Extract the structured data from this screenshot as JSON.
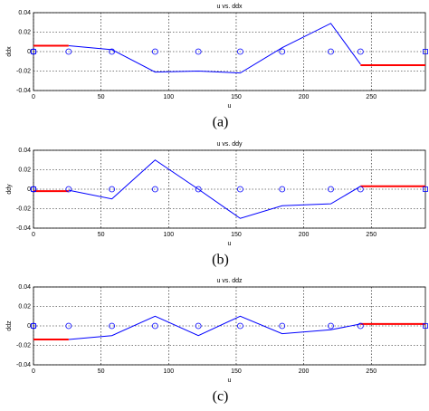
{
  "chart_data": [
    {
      "type": "line",
      "title": "u vs. ddx",
      "xlabel": "u",
      "ylabel": "ddx",
      "caption": "(a)",
      "xlim": [
        0,
        290
      ],
      "xticks": [
        0,
        50,
        100,
        150,
        200,
        250
      ],
      "ylim": [
        -0.04,
        0.04
      ],
      "yticks": [
        -0.04,
        -0.02,
        0,
        0.02,
        0.04
      ],
      "grid": true,
      "series": [
        {
          "color": "#0000ff",
          "x": [
            26,
            58,
            90,
            122,
            153,
            184,
            220,
            242
          ],
          "values": [
            0.006,
            0.002,
            -0.021,
            -0.02,
            -0.022,
            0.004,
            0.029,
            -0.013
          ]
        },
        {
          "color": "#ff0000",
          "x": [
            0,
            26
          ],
          "values": [
            0.006,
            0.006
          ]
        },
        {
          "color": "#ff0000",
          "x": [
            242,
            290
          ],
          "values": [
            -0.014,
            -0.014
          ]
        },
        {
          "color": "#0000ff",
          "marker": "o",
          "x": [
            0,
            26,
            58,
            90,
            122,
            153,
            184,
            220,
            242
          ],
          "values": [
            0,
            0,
            0,
            0,
            0,
            0,
            0,
            0,
            0
          ]
        },
        {
          "color": "#0000ff",
          "marker": "s",
          "x": [
            0,
            290
          ],
          "values": [
            0,
            0
          ]
        }
      ]
    },
    {
      "type": "line",
      "title": "u vs. ddy",
      "xlabel": "u",
      "ylabel": "ddy",
      "caption": "(b)",
      "xlim": [
        0,
        290
      ],
      "xticks": [
        0,
        50,
        100,
        150,
        200,
        250
      ],
      "ylim": [
        -0.04,
        0.04
      ],
      "yticks": [
        -0.04,
        -0.02,
        0,
        0.02,
        0.04
      ],
      "grid": true,
      "series": [
        {
          "color": "#0000ff",
          "x": [
            26,
            58,
            90,
            122,
            153,
            184,
            220,
            242
          ],
          "values": [
            -0.001,
            -0.01,
            0.03,
            0,
            -0.03,
            -0.017,
            -0.015,
            0.003
          ]
        },
        {
          "color": "#ff0000",
          "x": [
            0,
            26
          ],
          "values": [
            -0.002,
            -0.002
          ]
        },
        {
          "color": "#ff0000",
          "x": [
            242,
            290
          ],
          "values": [
            0.003,
            0.003
          ]
        },
        {
          "color": "#0000ff",
          "marker": "o",
          "x": [
            0,
            26,
            58,
            90,
            122,
            153,
            184,
            220,
            242
          ],
          "values": [
            0,
            0,
            0,
            0,
            0,
            0,
            0,
            0,
            0
          ]
        },
        {
          "color": "#0000ff",
          "marker": "s",
          "x": [
            0,
            290
          ],
          "values": [
            0,
            0
          ]
        }
      ]
    },
    {
      "type": "line",
      "title": "u vs. ddz",
      "xlabel": "u",
      "ylabel": "ddz",
      "caption": "(c)",
      "xlim": [
        0,
        290
      ],
      "xticks": [
        0,
        50,
        100,
        150,
        200,
        250
      ],
      "ylim": [
        -0.04,
        0.04
      ],
      "yticks": [
        -0.04,
        -0.02,
        0,
        0.02,
        0.04
      ],
      "grid": true,
      "series": [
        {
          "color": "#0000ff",
          "x": [
            26,
            58,
            90,
            122,
            153,
            184,
            220,
            242
          ],
          "values": [
            -0.014,
            -0.01,
            0.01,
            -0.01,
            0.01,
            -0.008,
            -0.004,
            0.002
          ]
        },
        {
          "color": "#ff0000",
          "x": [
            0,
            26
          ],
          "values": [
            -0.014,
            -0.014
          ]
        },
        {
          "color": "#ff0000",
          "x": [
            242,
            290
          ],
          "values": [
            0.002,
            0.002
          ]
        },
        {
          "color": "#0000ff",
          "marker": "o",
          "x": [
            0,
            26,
            58,
            90,
            122,
            153,
            184,
            220,
            242
          ],
          "values": [
            0,
            0,
            0,
            0,
            0,
            0,
            0,
            0,
            0
          ]
        },
        {
          "color": "#0000ff",
          "marker": "s",
          "x": [
            0,
            290
          ],
          "values": [
            0,
            0
          ]
        }
      ]
    }
  ]
}
